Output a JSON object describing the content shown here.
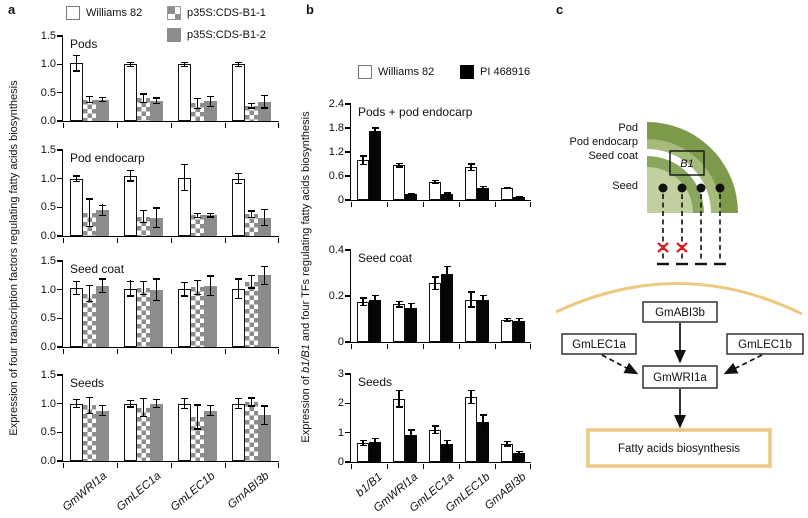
{
  "figure": {
    "panel_a_label": "a",
    "panel_b_label": "b",
    "panel_c_label": "c"
  },
  "panel_a": {
    "ylabel": "Expression of four transcription factors regulating fatty acids biosynthesis",
    "legend": [
      {
        "label": "Williams 82",
        "style": "white"
      },
      {
        "label": "p35S:CDS-B1-1",
        "style": "checker"
      },
      {
        "label": "p35S:CDS-B1-2",
        "style": "gray"
      }
    ]
  },
  "panel_b": {
    "ylabel_prefix": "Expression of ",
    "ylabel_italic": "b1/B1",
    "ylabel_suffix": " and four TFs regulating fatty acids biosynthesis",
    "legend": [
      {
        "label": "Williams 82",
        "style": "white"
      },
      {
        "label": "PI 468916",
        "style": "black"
      }
    ]
  },
  "chart_data": [
    {
      "panel": "a",
      "slot": 0,
      "type": "bar",
      "title": "Pods",
      "ylim": [
        0,
        1.5
      ],
      "yticks": [
        {
          "v": 0,
          "label": "0.0"
        },
        {
          "v": 0.5,
          "label": "0.5"
        },
        {
          "v": 1,
          "label": "1.0"
        },
        {
          "v": 1.5,
          "label": "1.5"
        }
      ],
      "categories": [
        "GmWRI1a",
        "GmLEC1a",
        "GmLEC1b",
        "GmABI3b"
      ],
      "series": [
        {
          "name": "Williams 82",
          "style": "white",
          "values": [
            1.02,
            1.0,
            1.0,
            1.0
          ],
          "errors": [
            0.15,
            0.05,
            0.05,
            0.05
          ]
        },
        {
          "name": "p35S:CDS-B1-1",
          "style": "checker",
          "values": [
            0.38,
            0.4,
            0.31,
            0.27
          ],
          "errors": [
            0.07,
            0.09,
            0.1,
            0.05
          ]
        },
        {
          "name": "p35S:CDS-B1-2",
          "style": "gray",
          "values": [
            0.38,
            0.36,
            0.35,
            0.34
          ],
          "errors": [
            0.05,
            0.06,
            0.1,
            0.12
          ]
        }
      ],
      "show_xlabels": false
    },
    {
      "panel": "a",
      "slot": 1,
      "type": "bar",
      "title": "Pod endocarp",
      "ylim": [
        0,
        1.5
      ],
      "yticks": [
        {
          "v": 0,
          "label": "0.0"
        },
        {
          "v": 0.5,
          "label": "0.5"
        },
        {
          "v": 1,
          "label": "1.0"
        },
        {
          "v": 1.5,
          "label": "1.5"
        }
      ],
      "categories": [
        "GmWRI1a",
        "GmLEC1a",
        "GmLEC1b",
        "GmABI3b"
      ],
      "series": [
        {
          "name": "Williams 82",
          "style": "white",
          "values": [
            1.0,
            1.05,
            1.02,
            1.0
          ],
          "errors": [
            0.06,
            0.1,
            0.24,
            0.1
          ]
        },
        {
          "name": "p35S:CDS-B1-1",
          "style": "checker",
          "values": [
            0.41,
            0.34,
            0.36,
            0.38
          ],
          "errors": [
            0.25,
            0.12,
            0.05,
            0.07
          ]
        },
        {
          "name": "p35S:CDS-B1-2",
          "style": "gray",
          "values": [
            0.45,
            0.32,
            0.36,
            0.32
          ],
          "errors": [
            0.1,
            0.18,
            0.04,
            0.15
          ]
        }
      ],
      "show_xlabels": false
    },
    {
      "panel": "a",
      "slot": 2,
      "type": "bar",
      "title": "Seed coat",
      "ylim": [
        0,
        1.5
      ],
      "yticks": [
        {
          "v": 0,
          "label": "0.0"
        },
        {
          "v": 0.5,
          "label": "0.5"
        },
        {
          "v": 1,
          "label": "1.0"
        },
        {
          "v": 1.5,
          "label": "1.5"
        }
      ],
      "categories": [
        "GmWRI1a",
        "GmLEC1a",
        "GmLEC1b",
        "GmABI3b"
      ],
      "series": [
        {
          "name": "Williams 82",
          "style": "white",
          "values": [
            1.03,
            1.02,
            1.01,
            1.02
          ],
          "errors": [
            0.12,
            0.14,
            0.13,
            0.18
          ]
        },
        {
          "name": "p35S:CDS-B1-1",
          "style": "checker",
          "values": [
            0.93,
            1.03,
            1.04,
            1.14
          ],
          "errors": [
            0.15,
            0.12,
            0.13,
            0.12
          ]
        },
        {
          "name": "p35S:CDS-B1-2",
          "style": "gray",
          "values": [
            1.07,
            1.0,
            1.07,
            1.25
          ],
          "errors": [
            0.13,
            0.2,
            0.18,
            0.17
          ]
        }
      ],
      "show_xlabels": false
    },
    {
      "panel": "a",
      "slot": 3,
      "type": "bar",
      "title": "Seeds",
      "ylim": [
        0,
        1.5
      ],
      "yticks": [
        {
          "v": 0,
          "label": "0.0"
        },
        {
          "v": 0.5,
          "label": "0.5"
        },
        {
          "v": 1,
          "label": "1.0"
        },
        {
          "v": 1.5,
          "label": "1.5"
        }
      ],
      "categories": [
        "GmWRI1a",
        "GmLEC1a",
        "GmLEC1b",
        "GmABI3b"
      ],
      "series": [
        {
          "name": "Williams 82",
          "style": "white",
          "values": [
            1.0,
            1.0,
            1.0,
            1.0
          ],
          "errors": [
            0.08,
            0.07,
            0.1,
            0.1
          ]
        },
        {
          "name": "p35S:CDS-B1-1",
          "style": "checker",
          "values": [
            0.97,
            0.93,
            0.77,
            1.03
          ],
          "errors": [
            0.15,
            0.17,
            0.22,
            0.08
          ]
        },
        {
          "name": "p35S:CDS-B1-2",
          "style": "gray",
          "values": [
            0.88,
            1.0,
            0.88,
            0.8
          ],
          "errors": [
            0.1,
            0.08,
            0.1,
            0.17
          ]
        }
      ],
      "show_xlabels": true
    },
    {
      "panel": "b",
      "slot": 0,
      "type": "bar",
      "title": "Pods + pod endocarp",
      "ylim": [
        0,
        2.4
      ],
      "yticks": [
        {
          "v": 0,
          "label": "0"
        },
        {
          "v": 0.6,
          "label": "0.6"
        },
        {
          "v": 1.2,
          "label": "1.2"
        },
        {
          "v": 1.8,
          "label": "1.8"
        },
        {
          "v": 2.4,
          "label": "2.4"
        }
      ],
      "categories": [
        "b1/B1",
        "GmWRI1a",
        "GmLEC1a",
        "GmLEC1b",
        "GmABI3b"
      ],
      "series": [
        {
          "name": "Williams 82",
          "style": "white",
          "values": [
            1.0,
            0.87,
            0.45,
            0.82,
            0.3
          ],
          "errors": [
            0.12,
            0.06,
            0.06,
            0.1,
            0.03
          ]
        },
        {
          "name": "PI 468916",
          "style": "black",
          "values": [
            1.72,
            0.15,
            0.15,
            0.3,
            0.07
          ],
          "errors": [
            0.1,
            0.03,
            0.04,
            0.05,
            0.02
          ]
        }
      ],
      "show_xlabels": false
    },
    {
      "panel": "b",
      "slot": 1,
      "type": "bar",
      "title": "Seed coat",
      "ylim": [
        0,
        0.4
      ],
      "yticks": [
        {
          "v": 0,
          "label": "0"
        },
        {
          "v": 0.2,
          "label": "0.2"
        },
        {
          "v": 0.4,
          "label": "0.4"
        }
      ],
      "categories": [
        "b1/B1",
        "GmWRI1a",
        "GmLEC1a",
        "GmLEC1b",
        "GmABI3b"
      ],
      "series": [
        {
          "name": "Williams 82",
          "style": "white",
          "values": [
            0.175,
            0.165,
            0.255,
            0.185,
            0.095
          ],
          "errors": [
            0.02,
            0.015,
            0.03,
            0.035,
            0.01
          ]
        },
        {
          "name": "PI 468916",
          "style": "black",
          "values": [
            0.185,
            0.15,
            0.295,
            0.185,
            0.09
          ],
          "errors": [
            0.02,
            0.02,
            0.035,
            0.02,
            0.015
          ]
        }
      ],
      "show_xlabels": false
    },
    {
      "panel": "b",
      "slot": 2,
      "type": "bar",
      "title": "Seeds",
      "ylim": [
        0,
        3
      ],
      "yticks": [
        {
          "v": 0,
          "label": "0"
        },
        {
          "v": 1,
          "label": "1"
        },
        {
          "v": 2,
          "label": "2"
        },
        {
          "v": 3,
          "label": "3"
        }
      ],
      "categories": [
        "b1/B1",
        "GmWRI1a",
        "GmLEC1a",
        "GmLEC1b",
        "GmABI3b"
      ],
      "series": [
        {
          "name": "Williams 82",
          "style": "white",
          "values": [
            0.65,
            2.15,
            1.1,
            2.22,
            0.62
          ],
          "errors": [
            0.1,
            0.3,
            0.15,
            0.25,
            0.1
          ]
        },
        {
          "name": "PI 468916",
          "style": "black",
          "values": [
            0.7,
            0.93,
            0.6,
            1.38,
            0.3
          ],
          "errors": [
            0.12,
            0.18,
            0.15,
            0.25,
            0.08
          ]
        }
      ],
      "show_xlabels": true
    }
  ],
  "panel_c": {
    "layer_labels": [
      "Pod",
      "Pod endocarp",
      "Seed coat",
      "Seed"
    ],
    "gene_box_label": "B1",
    "nodes": {
      "abi3b": "GmABI3b",
      "lec1a": "GmLEC1a",
      "lec1b": "GmLEC1b",
      "wri1a": "GmWRI1a",
      "output": "Fatty acids biosynthesis"
    },
    "colors": {
      "pod": "#7d9a4a",
      "pod_endocarp": "#a6ba7c",
      "gap": "#ffffff",
      "seed_coat": "#8aa55e",
      "seed": "#c1d09e",
      "membrane_arc": "#ecc97e",
      "blocked_x": "#e1201f"
    }
  }
}
